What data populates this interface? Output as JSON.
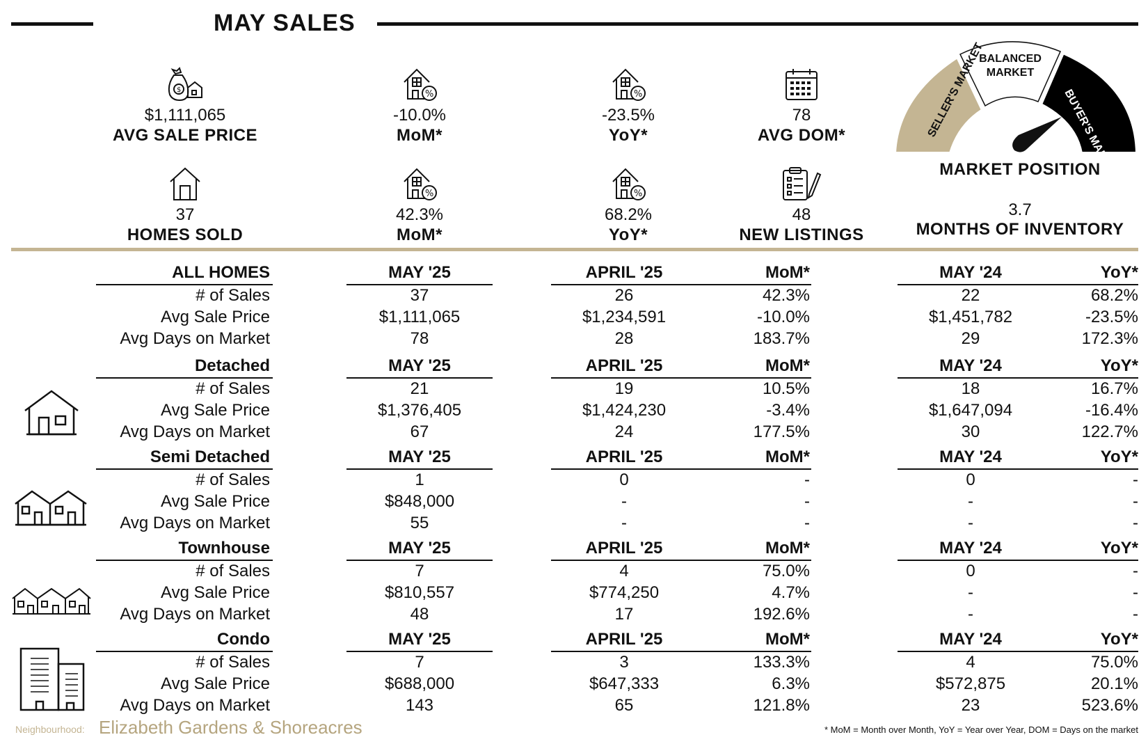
{
  "header": {
    "title": "MAY SALES"
  },
  "kpis_top": [
    {
      "value": "$1,111,065",
      "label": "AVG SALE PRICE",
      "icon": "money-bag-house-icon"
    },
    {
      "value": "-10.0%",
      "label": "MoM*",
      "icon": "house-percent-icon"
    },
    {
      "value": "-23.5%",
      "label": "YoY*",
      "icon": "house-percent-icon"
    },
    {
      "value": "78",
      "label": "AVG DOM*",
      "icon": "calendar-icon"
    }
  ],
  "kpis_bottom": [
    {
      "value": "37",
      "label": "HOMES SOLD",
      "icon": "house-icon"
    },
    {
      "value": "42.3%",
      "label": "MoM*",
      "icon": "house-percent-icon"
    },
    {
      "value": "68.2%",
      "label": "YoY*",
      "icon": "house-percent-icon"
    },
    {
      "value": "48",
      "label": "NEW LISTINGS",
      "icon": "clipboard-icon"
    }
  ],
  "gauge": {
    "seller": "SELLER'S MARKET",
    "balanced_line1": "BALANCED",
    "balanced_line2": "MARKET",
    "buyer": "BUYER'S MARKET",
    "title": "MARKET POSITION",
    "inventory_value": "3.7",
    "inventory_label": "MONTHS OF INVENTORY",
    "colors": {
      "seller": "#c4b593",
      "balanced": "#ffffff",
      "buyer": "#000000"
    }
  },
  "table": {
    "headers": {
      "current": "MAY '25",
      "previous": "APRIL '25",
      "mom": "MoM*",
      "last_year": "MAY '24",
      "yoy": "YoY*"
    },
    "row_labels": [
      "# of Sales",
      "Avg Sale Price",
      "Avg Days on Market"
    ],
    "sections": [
      {
        "name": "ALL HOMES",
        "icon": "",
        "rows": [
          [
            "37",
            "26",
            "42.3%",
            "22",
            "68.2%"
          ],
          [
            "$1,111,065",
            "$1,234,591",
            "-10.0%",
            "$1,451,782",
            "-23.5%"
          ],
          [
            "78",
            "28",
            "183.7%",
            "29",
            "172.3%"
          ]
        ]
      },
      {
        "name": "Detached",
        "icon": "detached-house-icon",
        "rows": [
          [
            "21",
            "19",
            "10.5%",
            "18",
            "16.7%"
          ],
          [
            "$1,376,405",
            "$1,424,230",
            "-3.4%",
            "$1,647,094",
            "-16.4%"
          ],
          [
            "67",
            "24",
            "177.5%",
            "30",
            "122.7%"
          ]
        ]
      },
      {
        "name": "Semi Detached",
        "icon": "semi-detached-icon",
        "rows": [
          [
            "1",
            "0",
            "-",
            "0",
            "-"
          ],
          [
            "$848,000",
            "-",
            "-",
            "-",
            "-"
          ],
          [
            "55",
            "-",
            "-",
            "-",
            "-"
          ]
        ]
      },
      {
        "name": "Townhouse",
        "icon": "townhouse-icon",
        "rows": [
          [
            "7",
            "4",
            "75.0%",
            "0",
            "-"
          ],
          [
            "$810,557",
            "$774,250",
            "4.7%",
            "-",
            "-"
          ],
          [
            "48",
            "17",
            "192.6%",
            "-",
            "-"
          ]
        ]
      },
      {
        "name": "Condo",
        "icon": "condo-icon",
        "rows": [
          [
            "7",
            "3",
            "133.3%",
            "4",
            "75.0%"
          ],
          [
            "$688,000",
            "$647,333",
            "6.3%",
            "$572,875",
            "20.1%"
          ],
          [
            "143",
            "65",
            "121.8%",
            "23",
            "523.6%"
          ]
        ]
      }
    ]
  },
  "footer": {
    "neighbourhood_label": "Neighbourhood:",
    "neighbourhood_name": "Elizabeth Gardens & Shoreacres",
    "note": "* MoM = Month over Month, YoY = Year over Year, DOM = Days on the market"
  }
}
